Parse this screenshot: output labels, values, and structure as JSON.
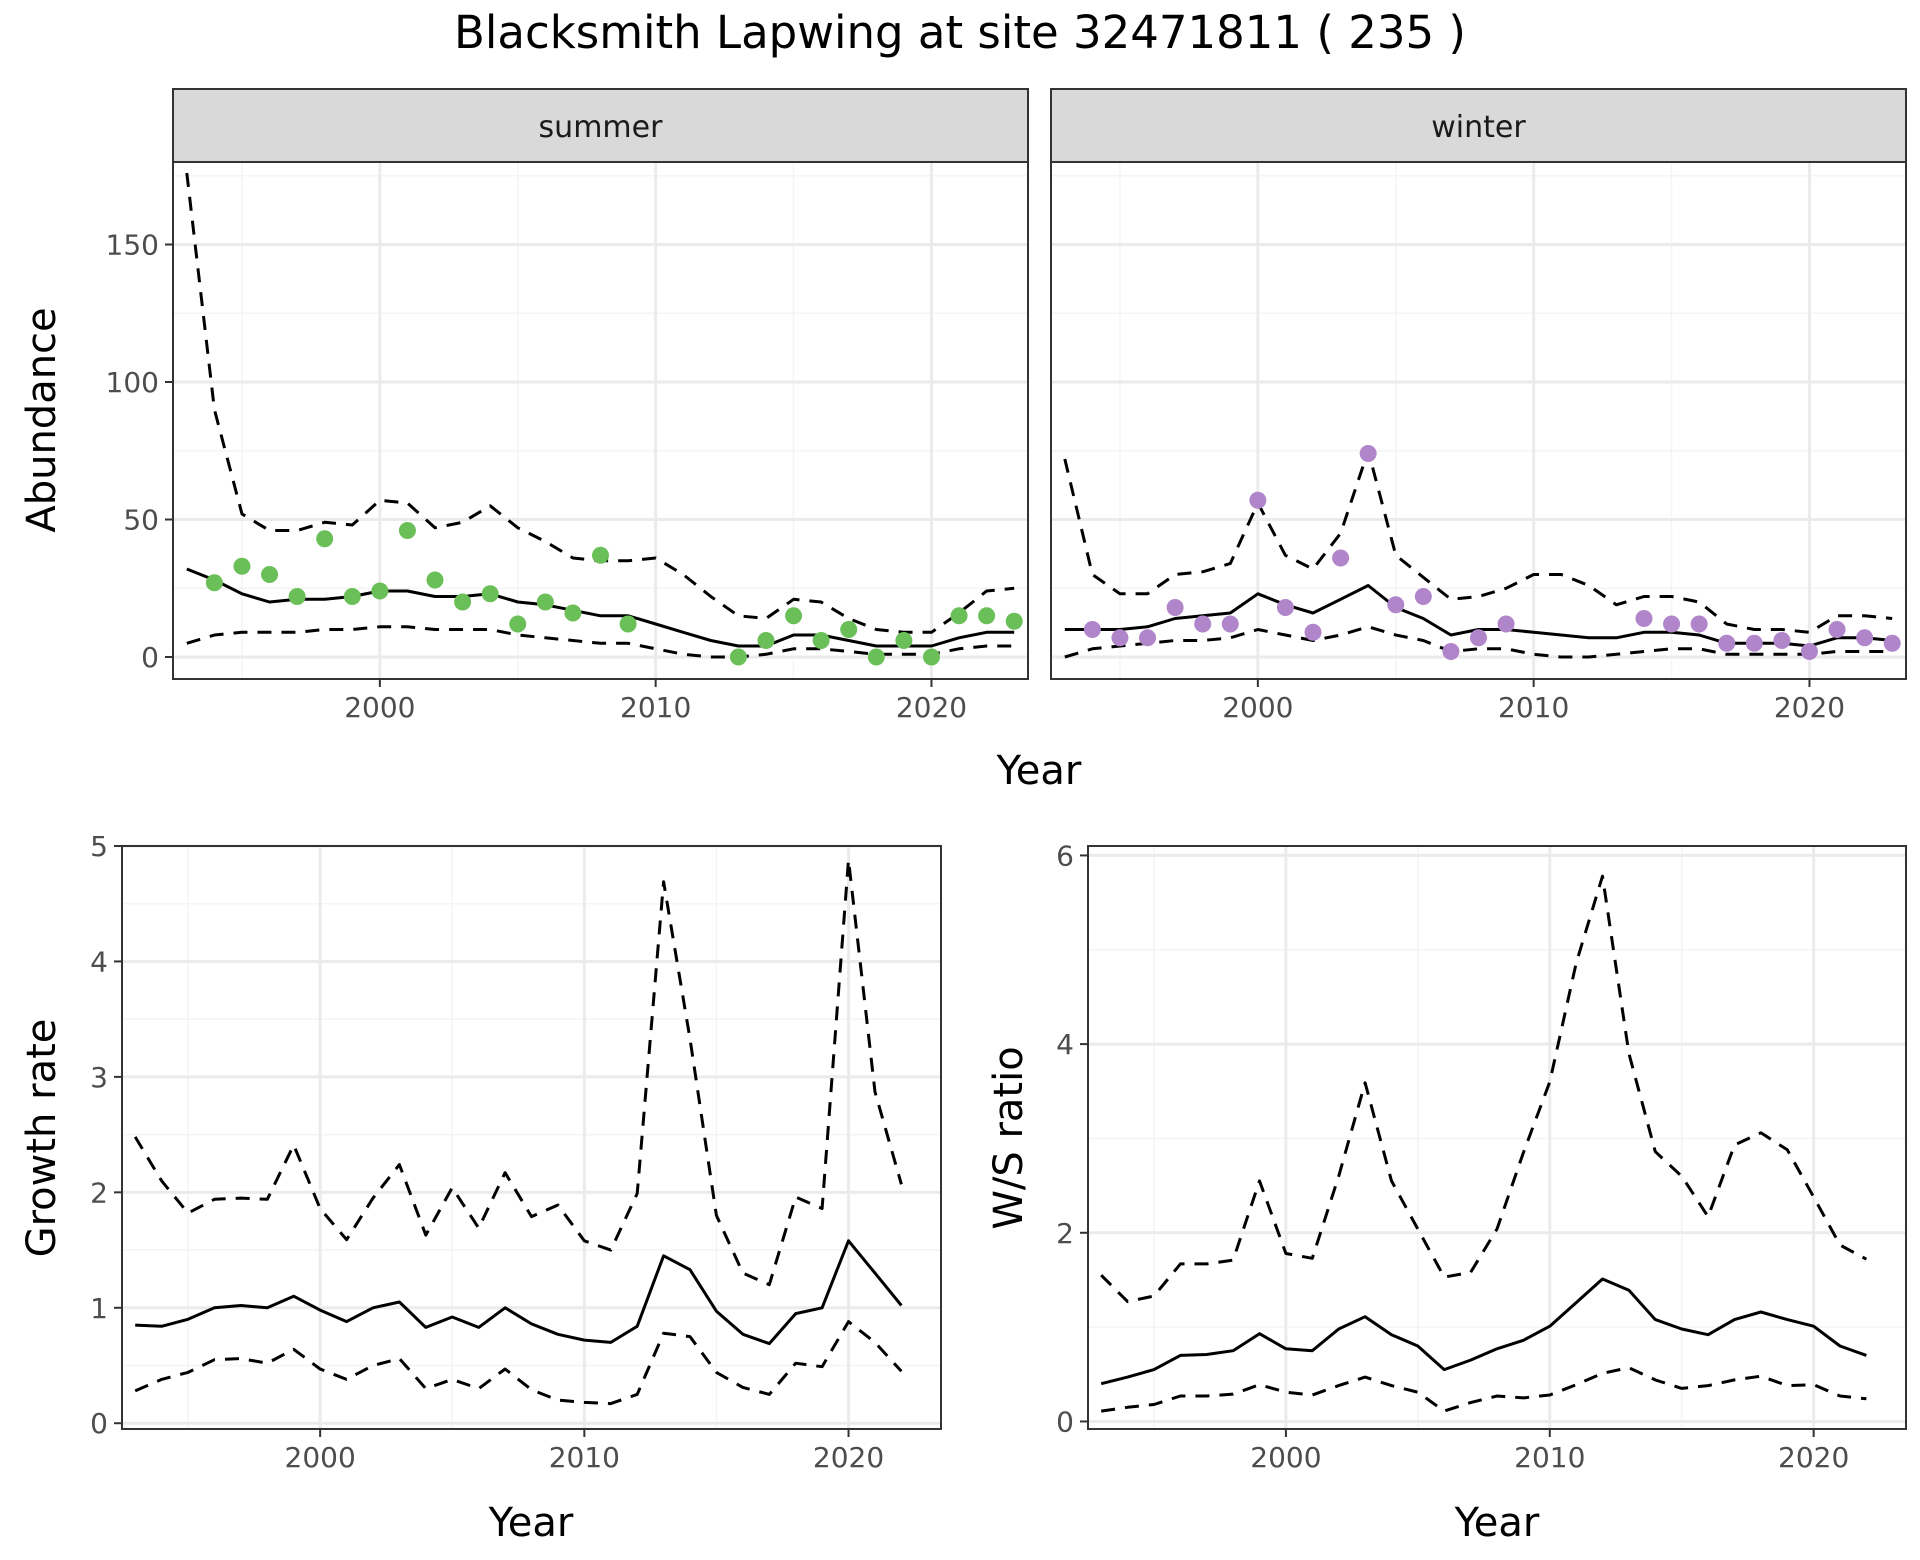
{
  "title": "Blacksmith Lapwing at site 32471811 ( 235 )",
  "colors": {
    "summer_points": "#6bbf59",
    "winter_points": "#b185c9",
    "line": "#000000",
    "strip_bg": "#d9d9d9",
    "grid_major": "#ebebeb",
    "grid_minor": "#f4f4f4"
  },
  "chart_data": [
    {
      "type": "line",
      "panel": "abundance",
      "facets": [
        "summer",
        "winter"
      ],
      "xlabel": "Year",
      "ylabel": "Abundance",
      "xlim": [
        1992.5,
        2023.5
      ],
      "ylim": [
        -8,
        180
      ],
      "xticks": [
        2000,
        2010,
        2020
      ],
      "yticks": [
        0,
        50,
        100,
        150
      ],
      "grid": true,
      "summer": {
        "x": [
          1993,
          1994,
          1995,
          1996,
          1997,
          1998,
          1999,
          2000,
          2001,
          2002,
          2003,
          2004,
          2005,
          2006,
          2007,
          2008,
          2009,
          2010,
          2011,
          2012,
          2013,
          2014,
          2015,
          2016,
          2017,
          2018,
          2019,
          2020,
          2021,
          2022,
          2023
        ],
        "mean": [
          32,
          28,
          23,
          20,
          21,
          21,
          22,
          24,
          24,
          22,
          22,
          23,
          20,
          19,
          17,
          15,
          15,
          12,
          9,
          6,
          4,
          4,
          8,
          8,
          6,
          4,
          4,
          4,
          7,
          9,
          9
        ],
        "lower": [
          5,
          8,
          9,
          9,
          9,
          10,
          10,
          11,
          11,
          10,
          10,
          10,
          8,
          7,
          6,
          5,
          5,
          3,
          1,
          0,
          0,
          1,
          3,
          3,
          2,
          1,
          1,
          1,
          3,
          4,
          4
        ],
        "upper": [
          176,
          90,
          52,
          46,
          46,
          49,
          48,
          57,
          56,
          47,
          49,
          55,
          47,
          42,
          36,
          35,
          35,
          36,
          30,
          22,
          15,
          14,
          21,
          20,
          14,
          10,
          9,
          9,
          16,
          24,
          25
        ],
        "obs_x": [
          1994,
          1995,
          1996,
          1997,
          1998,
          1999,
          2000,
          2001,
          2002,
          2003,
          2004,
          2005,
          2006,
          2007,
          2008,
          2009,
          2013,
          2014,
          2015,
          2016,
          2017,
          2018,
          2019,
          2020,
          2021,
          2022,
          2023
        ],
        "obs_y": [
          27,
          33,
          30,
          22,
          43,
          22,
          24,
          46,
          28,
          20,
          23,
          12,
          20,
          16,
          37,
          12,
          0,
          6,
          15,
          6,
          10,
          0,
          6,
          0,
          15,
          15,
          13
        ]
      },
      "winter": {
        "x": [
          1993,
          1994,
          1995,
          1996,
          1997,
          1998,
          1999,
          2000,
          2001,
          2002,
          2003,
          2004,
          2005,
          2006,
          2007,
          2008,
          2009,
          2010,
          2011,
          2012,
          2013,
          2014,
          2015,
          2016,
          2017,
          2018,
          2019,
          2020,
          2021,
          2022,
          2023
        ],
        "mean": [
          10,
          10,
          10,
          11,
          14,
          15,
          16,
          23,
          19,
          16,
          21,
          26,
          18,
          14,
          8,
          10,
          10,
          9,
          8,
          7,
          7,
          9,
          9,
          8,
          5,
          5,
          5,
          4,
          7,
          7,
          6
        ],
        "lower": [
          0,
          3,
          4,
          5,
          6,
          6,
          7,
          10,
          8,
          6,
          8,
          11,
          8,
          6,
          2,
          3,
          3,
          1,
          0,
          0,
          1,
          2,
          3,
          3,
          1,
          1,
          1,
          1,
          2,
          2,
          2
        ],
        "upper": [
          72,
          30,
          23,
          23,
          30,
          31,
          34,
          56,
          37,
          32,
          45,
          75,
          37,
          29,
          21,
          22,
          25,
          30,
          30,
          26,
          19,
          22,
          22,
          20,
          12,
          10,
          10,
          9,
          15,
          15,
          14
        ],
        "obs_x": [
          1994,
          1995,
          1996,
          1997,
          1998,
          1999,
          2000,
          2001,
          2002,
          2003,
          2004,
          2005,
          2006,
          2007,
          2008,
          2009,
          2014,
          2015,
          2016,
          2017,
          2018,
          2019,
          2020,
          2021,
          2022,
          2023
        ],
        "obs_y": [
          10,
          7,
          7,
          18,
          12,
          12,
          57,
          18,
          9,
          36,
          74,
          19,
          22,
          2,
          7,
          12,
          14,
          12,
          12,
          5,
          5,
          6,
          2,
          10,
          7,
          5
        ]
      }
    },
    {
      "type": "line",
      "panel": "growth",
      "xlabel": "Year",
      "ylabel": "Growth rate",
      "xlim": [
        1992.5,
        2023.5
      ],
      "ylim": [
        -0.05,
        5.0
      ],
      "xticks": [
        2000,
        2010,
        2020
      ],
      "yticks": [
        0,
        1,
        2,
        3,
        4,
        5
      ],
      "grid": true,
      "x": [
        1993,
        1994,
        1995,
        1996,
        1997,
        1998,
        1999,
        2000,
        2001,
        2002,
        2003,
        2004,
        2005,
        2006,
        2007,
        2008,
        2009,
        2010,
        2011,
        2012,
        2013,
        2014,
        2015,
        2016,
        2017,
        2018,
        2019,
        2020,
        2021,
        2022
      ],
      "mean": [
        0.85,
        0.84,
        0.9,
        1.0,
        1.02,
        1.0,
        1.1,
        0.98,
        0.88,
        1.0,
        1.05,
        0.83,
        0.92,
        0.83,
        1.0,
        0.86,
        0.77,
        0.72,
        0.7,
        0.84,
        1.45,
        1.33,
        0.97,
        0.77,
        0.69,
        0.95,
        1.0,
        1.58,
        1.3,
        1.02
      ],
      "lower": [
        0.28,
        0.38,
        0.44,
        0.55,
        0.56,
        0.52,
        0.64,
        0.47,
        0.38,
        0.5,
        0.56,
        0.3,
        0.38,
        0.3,
        0.47,
        0.29,
        0.2,
        0.18,
        0.17,
        0.25,
        0.78,
        0.75,
        0.44,
        0.31,
        0.25,
        0.52,
        0.49,
        0.88,
        0.7,
        0.45
      ],
      "upper": [
        2.48,
        2.1,
        1.82,
        1.94,
        1.95,
        1.94,
        2.41,
        1.86,
        1.59,
        1.95,
        2.24,
        1.63,
        2.04,
        1.69,
        2.17,
        1.79,
        1.89,
        1.58,
        1.5,
        1.99,
        4.69,
        3.33,
        1.8,
        1.3,
        1.2,
        1.96,
        1.86,
        4.88,
        2.87,
        2.07
      ]
    },
    {
      "type": "line",
      "panel": "ratio",
      "xlabel": "Year",
      "ylabel": "W/S ratio",
      "xlim": [
        1992.5,
        2023.5
      ],
      "ylim": [
        -0.08,
        6.1
      ],
      "xticks": [
        2000,
        2010,
        2020
      ],
      "yticks": [
        0,
        2,
        4,
        6
      ],
      "grid": true,
      "x": [
        1993,
        1994,
        1995,
        1996,
        1997,
        1998,
        1999,
        2000,
        2001,
        2002,
        2003,
        2004,
        2005,
        2006,
        2007,
        2008,
        2009,
        2010,
        2011,
        2012,
        2013,
        2014,
        2015,
        2016,
        2017,
        2018,
        2019,
        2020,
        2021,
        2022
      ],
      "mean": [
        0.4,
        0.47,
        0.55,
        0.7,
        0.71,
        0.75,
        0.93,
        0.77,
        0.75,
        0.98,
        1.11,
        0.92,
        0.8,
        0.55,
        0.65,
        0.77,
        0.86,
        1.01,
        1.26,
        1.51,
        1.39,
        1.08,
        0.98,
        0.92,
        1.08,
        1.16,
        1.08,
        1.01,
        0.8,
        0.7
      ],
      "lower": [
        0.11,
        0.15,
        0.18,
        0.27,
        0.27,
        0.29,
        0.39,
        0.31,
        0.28,
        0.38,
        0.47,
        0.38,
        0.31,
        0.11,
        0.2,
        0.27,
        0.25,
        0.28,
        0.39,
        0.51,
        0.57,
        0.44,
        0.35,
        0.38,
        0.44,
        0.48,
        0.38,
        0.39,
        0.27,
        0.24
      ],
      "upper": [
        1.55,
        1.27,
        1.33,
        1.67,
        1.67,
        1.71,
        2.55,
        1.78,
        1.73,
        2.6,
        3.59,
        2.55,
        2.04,
        1.53,
        1.58,
        2.04,
        2.85,
        3.6,
        4.86,
        5.78,
        3.9,
        2.86,
        2.6,
        2.17,
        2.93,
        3.06,
        2.88,
        2.38,
        1.87,
        1.72
      ]
    }
  ]
}
